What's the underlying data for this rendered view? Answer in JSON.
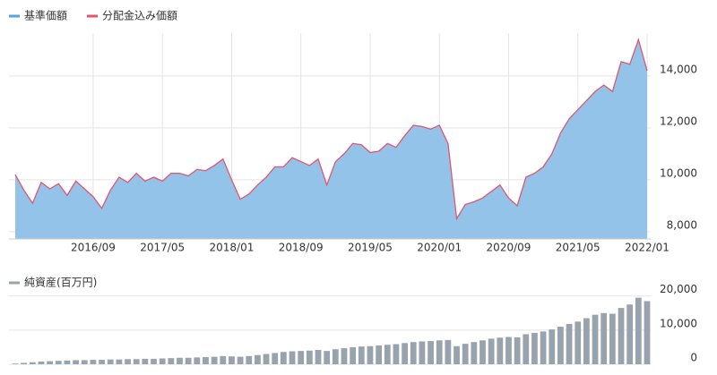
{
  "chart_data": [
    {
      "type": "area",
      "categories": [
        null,
        null,
        null,
        null,
        null,
        null,
        null,
        null,
        null,
        "2016/09",
        null,
        null,
        null,
        null,
        null,
        null,
        null,
        "2017/05",
        null,
        null,
        null,
        null,
        null,
        null,
        null,
        "2018/01",
        null,
        null,
        null,
        null,
        null,
        null,
        null,
        "2018/09",
        null,
        null,
        null,
        null,
        null,
        null,
        null,
        "2019/05",
        null,
        null,
        null,
        null,
        null,
        null,
        null,
        "2020/01",
        null,
        null,
        null,
        null,
        null,
        null,
        null,
        "2020/09",
        null,
        null,
        null,
        null,
        null,
        null,
        null,
        "2021/05",
        null,
        null,
        null,
        null,
        null,
        null,
        null,
        "2022/01"
      ],
      "series": [
        {
          "name": "基準価額",
          "color": "#93c3e8",
          "filled": true,
          "values": [
            10200,
            9600,
            9100,
            9900,
            9650,
            9850,
            9400,
            9950,
            9650,
            9350,
            8900,
            9600,
            10100,
            9900,
            10250,
            9950,
            10100,
            9950,
            10250,
            10250,
            10150,
            10400,
            10350,
            10550,
            10800,
            10000,
            9250,
            9450,
            9800,
            10100,
            10500,
            10500,
            10850,
            10700,
            10550,
            10800,
            9800,
            10700,
            11000,
            11400,
            11350,
            11050,
            11100,
            11400,
            11250,
            11700,
            12100,
            12050,
            11950,
            12100,
            11400,
            8500,
            9050,
            9150,
            9300,
            9550,
            9800,
            9300,
            9000,
            10100,
            10250,
            10500,
            11000,
            11800,
            12350,
            12700,
            13050,
            13400,
            13650,
            13400,
            14550,
            14450,
            15400,
            14200
          ]
        },
        {
          "name": "分配金込み価額",
          "color": "#e0566e",
          "filled": false,
          "values": [
            10200,
            9600,
            9100,
            9900,
            9650,
            9850,
            9400,
            9950,
            9650,
            9350,
            8900,
            9600,
            10100,
            9900,
            10250,
            9950,
            10100,
            9950,
            10250,
            10250,
            10150,
            10400,
            10350,
            10550,
            10800,
            10000,
            9250,
            9450,
            9800,
            10100,
            10500,
            10500,
            10850,
            10700,
            10550,
            10800,
            9800,
            10700,
            11000,
            11400,
            11350,
            11050,
            11100,
            11400,
            11250,
            11700,
            12100,
            12050,
            11950,
            12100,
            11400,
            8500,
            9050,
            9150,
            9300,
            9550,
            9800,
            9300,
            9000,
            10100,
            10250,
            10500,
            11000,
            11800,
            12350,
            12700,
            13050,
            13400,
            13650,
            13400,
            14550,
            14450,
            15400,
            14200
          ]
        }
      ],
      "ylim": [
        7720,
        15650
      ],
      "yticks": [
        {
          "value": 8000,
          "label": "8,000"
        },
        {
          "value": 10000,
          "label": "10,000"
        },
        {
          "value": 12000,
          "label": "12,000"
        },
        {
          "value": 14000,
          "label": "14,000"
        }
      ],
      "grid": true
    },
    {
      "type": "bar",
      "series": [
        {
          "name": "純資産(百万円)",
          "color": "#98a3ae",
          "values": [
            200,
            400,
            600,
            800,
            900,
            1000,
            1100,
            1200,
            1200,
            1300,
            1300,
            1400,
            1400,
            1500,
            1500,
            1600,
            1600,
            1700,
            1800,
            1900,
            1900,
            2000,
            2100,
            2200,
            2400,
            2300,
            2200,
            2400,
            2700,
            3000,
            3300,
            3600,
            3800,
            3900,
            4000,
            4200,
            3900,
            4400,
            4700,
            5000,
            5200,
            5300,
            5500,
            5700,
            5900,
            6200,
            6500,
            6700,
            6800,
            7000,
            7100,
            5300,
            6000,
            6500,
            7000,
            7500,
            7800,
            8000,
            7900,
            8800,
            9200,
            9600,
            10200,
            11000,
            11800,
            12500,
            13500,
            14500,
            15000,
            14800,
            16500,
            17500,
            19500,
            18500
          ]
        }
      ],
      "ylim": [
        0,
        21500
      ],
      "yticks": [
        0,
        {
          "value": 10000,
          "label": "10,000"
        },
        {
          "value": 20000,
          "label": "20,000"
        }
      ],
      "grid": true
    }
  ]
}
